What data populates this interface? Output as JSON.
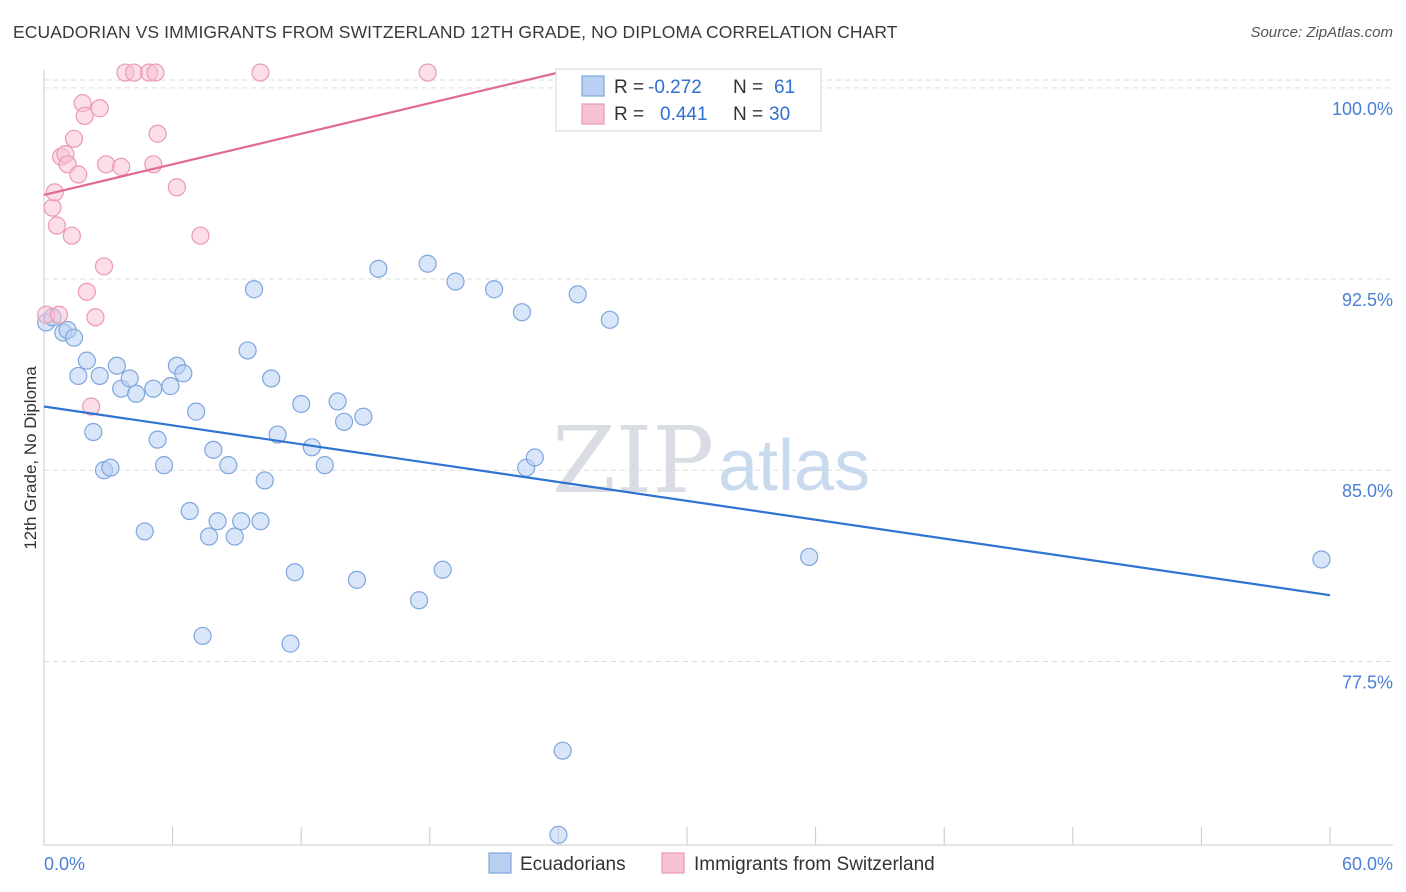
{
  "title": "ECUADORIAN VS IMMIGRANTS FROM SWITZERLAND 12TH GRADE, NO DIPLOMA CORRELATION CHART",
  "source": "Source: ZipAtlas.com",
  "colors": {
    "blue_fill": "#b9d0f2",
    "blue_stroke": "#7fa6dd",
    "blue_line": "#2f74d0",
    "pink_fill": "#f7c3d3",
    "pink_stroke": "#ea9ab3",
    "pink_line": "#e06a93",
    "tick_text": "#4a7fd4",
    "grid": "#dcdcdc"
  },
  "legend_box": {
    "rows": [
      {
        "series": "Ecuadorians",
        "r_label": "R =",
        "r_value": "-0.272",
        "n_label": "N =",
        "n_value": "61"
      },
      {
        "series": "Immigrants from Switzerland",
        "r_label": "R =",
        "r_value": "0.441",
        "n_label": "N =",
        "n_value": "30"
      }
    ]
  },
  "watermark": {
    "zip": "ZIP",
    "atlas": "atlas"
  },
  "chart_data": {
    "type": "scatter",
    "title": "ECUADORIAN VS IMMIGRANTS FROM SWITZERLAND 12TH GRADE, NO DIPLOMA CORRELATION CHART",
    "xlabel": "",
    "ylabel": "12th Grade, No Diploma",
    "xlim": [
      0,
      60
    ],
    "ylim": [
      70.3,
      100.7
    ],
    "x_tick_labels": [
      "0.0%",
      "60.0%"
    ],
    "y_ticks": [
      77.5,
      85.0,
      92.5,
      100.0
    ],
    "y_tick_labels": [
      "77.5%",
      "85.0%",
      "92.5%",
      "100.0%"
    ],
    "grid": true,
    "legend_position": "top-center",
    "series": [
      {
        "name": "Ecuadorians",
        "R": -0.272,
        "N": 61,
        "trend": [
          [
            0.0,
            87.5
          ],
          [
            60.0,
            80.1
          ]
        ],
        "points": [
          [
            0.1,
            90.8
          ],
          [
            0.4,
            91.0
          ],
          [
            0.9,
            90.4
          ],
          [
            1.1,
            90.5
          ],
          [
            1.4,
            90.2
          ],
          [
            1.6,
            88.7
          ],
          [
            2.0,
            89.3
          ],
          [
            2.3,
            86.5
          ],
          [
            2.6,
            88.7
          ],
          [
            2.8,
            85.0
          ],
          [
            3.1,
            85.1
          ],
          [
            3.4,
            89.1
          ],
          [
            3.6,
            88.2
          ],
          [
            4.0,
            88.6
          ],
          [
            4.3,
            88.0
          ],
          [
            4.7,
            82.6
          ],
          [
            5.1,
            88.2
          ],
          [
            5.3,
            86.2
          ],
          [
            5.6,
            85.2
          ],
          [
            5.9,
            88.3
          ],
          [
            6.2,
            89.1
          ],
          [
            6.5,
            88.8
          ],
          [
            6.8,
            83.4
          ],
          [
            7.1,
            87.3
          ],
          [
            7.4,
            78.5
          ],
          [
            7.7,
            82.4
          ],
          [
            7.9,
            85.8
          ],
          [
            8.1,
            83.0
          ],
          [
            8.6,
            85.2
          ],
          [
            8.9,
            82.4
          ],
          [
            9.2,
            83.0
          ],
          [
            9.5,
            89.7
          ],
          [
            9.8,
            92.1
          ],
          [
            10.1,
            83.0
          ],
          [
            10.3,
            84.6
          ],
          [
            10.6,
            88.6
          ],
          [
            10.9,
            86.4
          ],
          [
            11.5,
            78.2
          ],
          [
            11.7,
            81.0
          ],
          [
            12.0,
            87.6
          ],
          [
            12.5,
            85.9
          ],
          [
            13.1,
            85.2
          ],
          [
            13.7,
            87.7
          ],
          [
            14.0,
            86.9
          ],
          [
            14.6,
            80.7
          ],
          [
            14.9,
            87.1
          ],
          [
            15.6,
            92.9
          ],
          [
            17.5,
            79.9
          ],
          [
            17.9,
            93.1
          ],
          [
            18.6,
            81.1
          ],
          [
            19.2,
            92.4
          ],
          [
            21.0,
            92.1
          ],
          [
            22.5,
            85.1
          ],
          [
            22.3,
            91.2
          ],
          [
            22.9,
            85.5
          ],
          [
            24.2,
            74.0
          ],
          [
            24.0,
            70.7
          ],
          [
            24.9,
            91.9
          ],
          [
            26.4,
            90.9
          ],
          [
            35.7,
            81.6
          ],
          [
            59.6,
            81.5
          ]
        ]
      },
      {
        "name": "Immigrants from Switzerland",
        "R": 0.441,
        "N": 30,
        "trend": [
          [
            0.0,
            95.8
          ],
          [
            24.5,
            100.7
          ]
        ],
        "points": [
          [
            0.1,
            91.1
          ],
          [
            0.4,
            95.3
          ],
          [
            0.5,
            95.9
          ],
          [
            0.6,
            94.6
          ],
          [
            0.7,
            91.1
          ],
          [
            0.8,
            97.3
          ],
          [
            1.0,
            97.4
          ],
          [
            1.1,
            97.0
          ],
          [
            1.3,
            94.2
          ],
          [
            1.4,
            98.0
          ],
          [
            1.6,
            96.6
          ],
          [
            1.8,
            99.4
          ],
          [
            1.9,
            98.9
          ],
          [
            2.0,
            92.0
          ],
          [
            2.2,
            87.5
          ],
          [
            2.4,
            91.0
          ],
          [
            2.6,
            99.2
          ],
          [
            2.8,
            93.0
          ],
          [
            2.9,
            97.0
          ],
          [
            3.6,
            96.9
          ],
          [
            3.8,
            100.6
          ],
          [
            4.2,
            100.6
          ],
          [
            4.9,
            100.6
          ],
          [
            5.1,
            97.0
          ],
          [
            5.3,
            98.2
          ],
          [
            5.2,
            100.6
          ],
          [
            6.2,
            96.1
          ],
          [
            7.3,
            94.2
          ],
          [
            10.1,
            100.6
          ],
          [
            17.9,
            100.6
          ]
        ]
      }
    ]
  },
  "bottom_legend": [
    {
      "label": "Ecuadorians"
    },
    {
      "label": "Immigrants from Switzerland"
    }
  ]
}
